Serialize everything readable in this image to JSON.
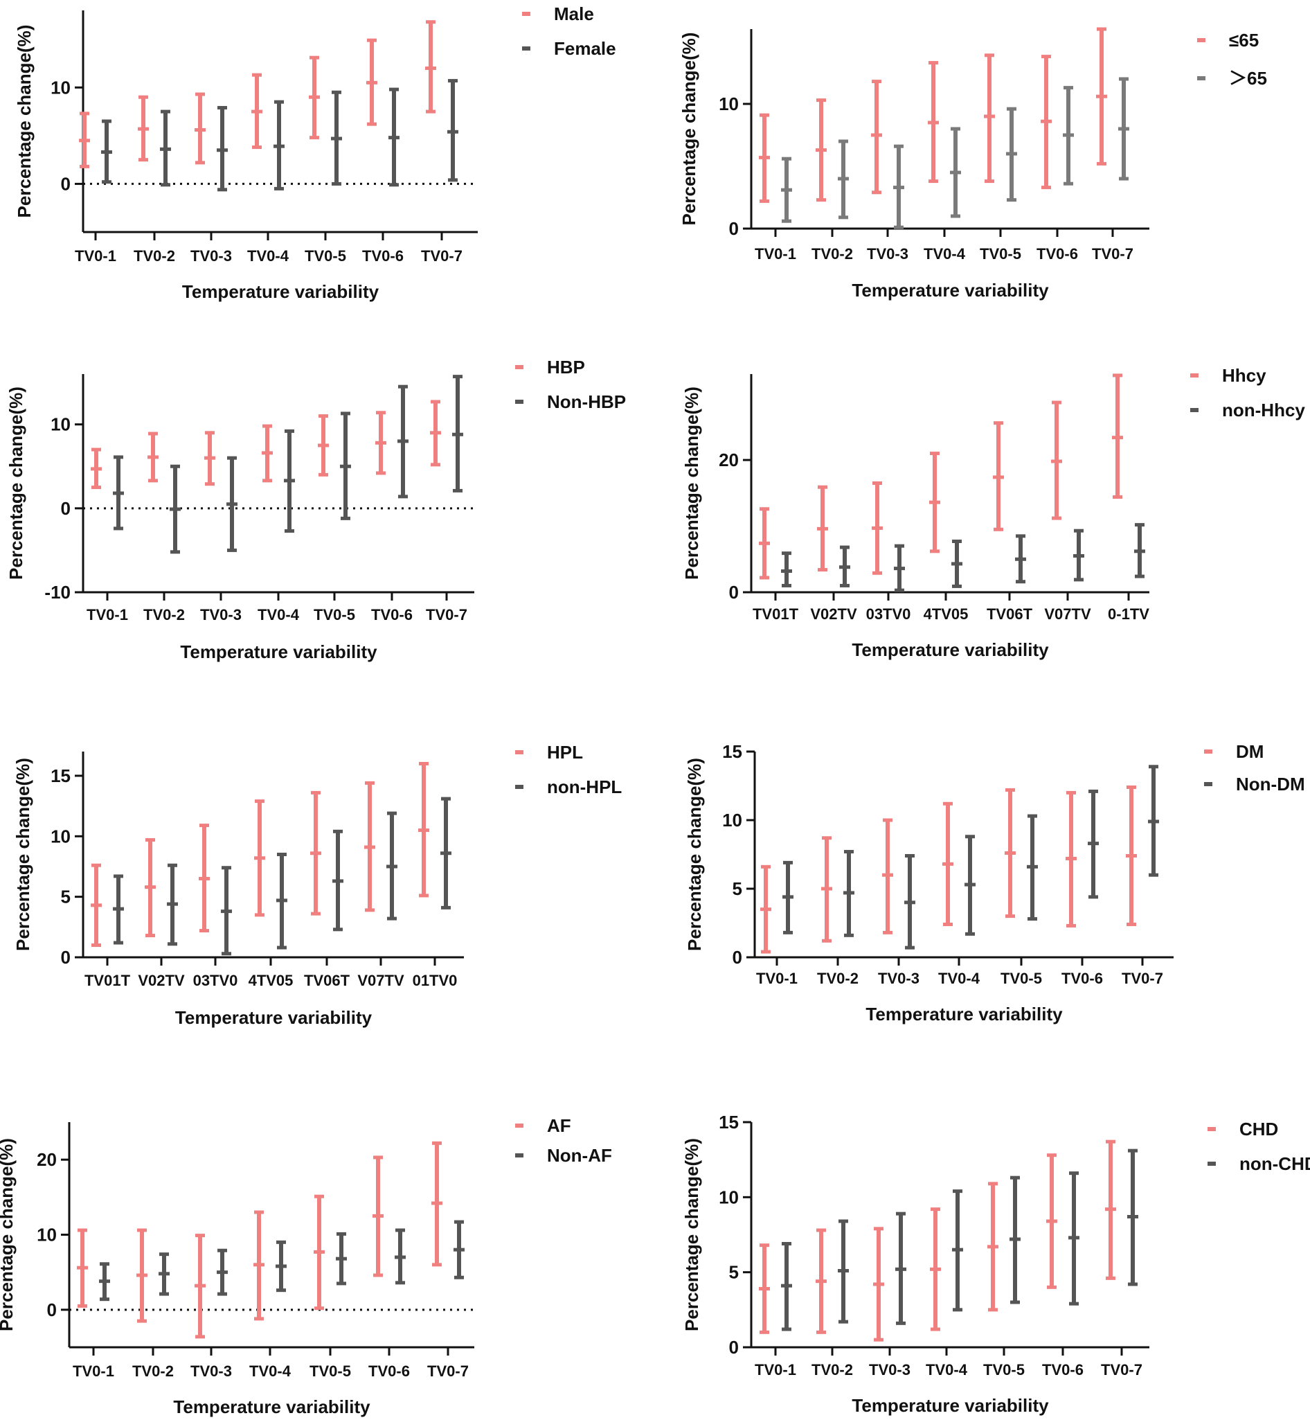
{
  "figure": {
    "background": "#ffffff",
    "series_colors": [
      "#f08080",
      "#555555"
    ]
  },
  "chart_data": [
    {
      "type": "errorbar",
      "panel": "male-female",
      "categories": [
        "TV0-1",
        "TV0-2",
        "TV0-3",
        "TV0-4",
        "TV0-5",
        "TV0-6",
        "TV0-7"
      ],
      "xlabel": "Temperature variability",
      "ylabel": "Percentage change(%)",
      "ylim": [
        -5,
        18
      ],
      "yticks": [
        0,
        10
      ],
      "zero_line": true,
      "series": [
        {
          "name": "Male",
          "color": "#f08080",
          "mid": [
            4.5,
            5.7,
            5.6,
            7.5,
            9.0,
            10.5,
            12.0
          ],
          "low": [
            1.8,
            2.5,
            2.2,
            3.8,
            4.8,
            6.2,
            7.5
          ],
          "high": [
            7.3,
            9.0,
            9.3,
            11.3,
            13.1,
            14.9,
            16.8
          ]
        },
        {
          "name": "Female",
          "color": "#555555",
          "mid": [
            3.3,
            3.6,
            3.5,
            3.9,
            4.7,
            4.8,
            5.4
          ],
          "low": [
            0.2,
            -0.1,
            -0.6,
            -0.5,
            0.0,
            -0.1,
            0.4
          ],
          "high": [
            6.5,
            7.5,
            7.9,
            8.5,
            9.5,
            9.8,
            10.7
          ]
        }
      ]
    },
    {
      "type": "errorbar",
      "panel": "age",
      "categories": [
        "TV0-1",
        "TV0-2",
        "TV0-3",
        "TV0-4",
        "TV0-5",
        "TV0-6",
        "TV0-7"
      ],
      "xlabel": "Temperature variability",
      "ylabel": "Percentage change(%)",
      "ylim": [
        0,
        16
      ],
      "yticks": [
        0,
        10
      ],
      "zero_line": false,
      "series": [
        {
          "name": "≤65",
          "color": "#f08080",
          "mid": [
            5.7,
            6.3,
            7.5,
            8.5,
            9.0,
            8.6,
            10.6
          ],
          "low": [
            2.2,
            2.3,
            2.9,
            3.8,
            3.8,
            3.3,
            5.2
          ],
          "high": [
            9.1,
            10.3,
            11.8,
            13.3,
            13.9,
            13.8,
            16.0
          ]
        },
        {
          "name": "＞65",
          "color": "#7a7a7a",
          "mid": [
            3.1,
            4.0,
            3.3,
            4.5,
            6.0,
            7.5,
            8.0
          ],
          "low": [
            0.6,
            0.9,
            0.1,
            1.0,
            2.3,
            3.6,
            4.0
          ],
          "high": [
            5.6,
            7.0,
            6.6,
            8.0,
            9.6,
            11.3,
            12.0
          ]
        }
      ]
    },
    {
      "type": "errorbar",
      "panel": "hbp",
      "categories": [
        "TV0-1",
        "TV0-2",
        "TV0-3",
        "TV0-4",
        "TV0-5",
        "TV0-6",
        "TV0-7"
      ],
      "xlabel": "Temperature variability",
      "ylabel": "Percentage change(%)",
      "ylim": [
        -10,
        16
      ],
      "yticks": [
        -10,
        0,
        10
      ],
      "zero_line": true,
      "series": [
        {
          "name": "HBP",
          "color": "#f08080",
          "mid": [
            4.7,
            6.1,
            6.0,
            6.6,
            7.5,
            7.8,
            9.0
          ],
          "low": [
            2.5,
            3.3,
            2.9,
            3.3,
            4.0,
            4.2,
            5.2
          ],
          "high": [
            7.0,
            8.9,
            9.0,
            9.8,
            11.0,
            11.4,
            12.7
          ]
        },
        {
          "name": "Non-HBP",
          "color": "#555555",
          "mid": [
            1.8,
            -0.1,
            0.5,
            3.3,
            5.0,
            8.0,
            8.8
          ],
          "low": [
            -2.4,
            -5.2,
            -5.0,
            -2.7,
            -1.2,
            1.4,
            2.1
          ],
          "high": [
            6.1,
            5.0,
            6.0,
            9.2,
            11.3,
            14.5,
            15.7
          ]
        }
      ]
    },
    {
      "type": "errorbar",
      "panel": "hhcy",
      "categories": [
        "TV01T",
        "V02TV",
        "03TV0",
        "4TV05",
        "TV06T",
        "V07TV",
        "0-1TV"
      ],
      "xlabel": "Temperature variability",
      "ylabel": "Percentage change(%)",
      "ylim": [
        0,
        33
      ],
      "yticks": [
        0,
        20
      ],
      "zero_line": false,
      "series": [
        {
          "name": "Hhcy",
          "color": "#f08080",
          "mid": [
            7.4,
            9.6,
            9.7,
            13.6,
            17.4,
            19.8,
            23.4
          ],
          "low": [
            2.2,
            3.4,
            2.9,
            6.2,
            9.5,
            11.2,
            14.4
          ],
          "high": [
            12.6,
            15.9,
            16.5,
            21.0,
            25.6,
            28.7,
            32.8
          ]
        },
        {
          "name": "non-Hhcy",
          "color": "#555555",
          "mid": [
            3.2,
            3.8,
            3.6,
            4.3,
            5.0,
            5.5,
            6.2
          ],
          "low": [
            1.0,
            1.0,
            0.3,
            0.9,
            1.6,
            1.9,
            2.4
          ],
          "high": [
            5.9,
            6.8,
            7.0,
            7.7,
            8.5,
            9.3,
            10.2
          ]
        }
      ]
    },
    {
      "type": "errorbar",
      "panel": "hpl",
      "categories": [
        "TV01T",
        "V02TV",
        "03TV0",
        "4TV05",
        "TV06T",
        "V07TV",
        "01TV0"
      ],
      "xlabel": "Temperature variability",
      "ylabel": "Percentage change(%)",
      "ylim": [
        0,
        17
      ],
      "yticks": [
        0,
        5,
        10,
        15
      ],
      "zero_line": false,
      "series": [
        {
          "name": "HPL",
          "color": "#f08080",
          "mid": [
            4.3,
            5.8,
            6.5,
            8.2,
            8.6,
            9.1,
            10.5
          ],
          "low": [
            1.0,
            1.8,
            2.2,
            3.5,
            3.6,
            3.9,
            5.1
          ],
          "high": [
            7.6,
            9.7,
            10.9,
            12.9,
            13.6,
            14.4,
            16.0
          ]
        },
        {
          "name": "non-HPL",
          "color": "#555555",
          "mid": [
            4.0,
            4.4,
            3.8,
            4.7,
            6.3,
            7.5,
            8.6
          ],
          "low": [
            1.2,
            1.1,
            0.3,
            0.8,
            2.3,
            3.2,
            4.1
          ],
          "high": [
            6.7,
            7.6,
            7.4,
            8.5,
            10.4,
            11.9,
            13.1
          ]
        }
      ]
    },
    {
      "type": "errorbar",
      "panel": "dm",
      "categories": [
        "TV0-1",
        "TV0-2",
        "TV0-3",
        "TV0-4",
        "TV0-5",
        "TV0-6",
        "TV0-7"
      ],
      "xlabel": "Temperature variability",
      "ylabel": "Percentage change(%)",
      "ylim": [
        0,
        15
      ],
      "yticks": [
        0,
        5,
        10,
        15
      ],
      "zero_line": false,
      "series": [
        {
          "name": "DM",
          "color": "#f08080",
          "mid": [
            3.5,
            5.0,
            6.0,
            6.8,
            7.6,
            7.2,
            7.4
          ],
          "low": [
            0.4,
            1.2,
            1.8,
            2.4,
            3.0,
            2.3,
            2.4
          ],
          "high": [
            6.6,
            8.7,
            10.0,
            11.2,
            12.2,
            12.0,
            12.4
          ]
        },
        {
          "name": "Non-DM",
          "color": "#555555",
          "mid": [
            4.4,
            4.7,
            4.0,
            5.3,
            6.6,
            8.3,
            9.9
          ],
          "low": [
            1.8,
            1.6,
            0.7,
            1.7,
            2.8,
            4.4,
            6.0
          ],
          "high": [
            6.9,
            7.7,
            7.4,
            8.8,
            10.3,
            12.1,
            13.9
          ]
        }
      ]
    },
    {
      "type": "errorbar",
      "panel": "af",
      "categories": [
        "TV0-1",
        "TV0-2",
        "TV0-3",
        "TV0-4",
        "TV0-5",
        "TV0-6",
        "TV0-7"
      ],
      "xlabel": "Temperature variability",
      "ylabel": "Percentage change(%)",
      "ylim": [
        -5,
        25
      ],
      "yticks": [
        0,
        10,
        20
      ],
      "zero_line": true,
      "series": [
        {
          "name": "AF",
          "color": "#f08080",
          "mid": [
            5.6,
            4.6,
            3.2,
            6.0,
            7.7,
            12.5,
            14.2
          ],
          "low": [
            0.5,
            -1.5,
            -3.6,
            -1.2,
            0.2,
            4.6,
            6.0
          ],
          "high": [
            10.6,
            10.6,
            9.9,
            13.0,
            15.1,
            20.3,
            22.2
          ]
        },
        {
          "name": "Non-AF",
          "color": "#555555",
          "mid": [
            3.8,
            4.8,
            5.0,
            5.8,
            6.8,
            7.0,
            8.0
          ],
          "low": [
            1.4,
            2.1,
            2.1,
            2.6,
            3.5,
            3.6,
            4.3
          ],
          "high": [
            6.1,
            7.4,
            7.9,
            9.0,
            10.1,
            10.6,
            11.7
          ]
        }
      ]
    },
    {
      "type": "errorbar",
      "panel": "chd",
      "categories": [
        "TV0-1",
        "TV0-2",
        "TV0-3",
        "TV0-4",
        "TV0-5",
        "TV0-6",
        "TV0-7"
      ],
      "xlabel": "Temperature variability",
      "ylabel": "Percentage change(%)",
      "ylim": [
        0,
        15
      ],
      "yticks": [
        0,
        5,
        10,
        15
      ],
      "zero_line": false,
      "series": [
        {
          "name": "CHD",
          "color": "#f08080",
          "mid": [
            3.9,
            4.4,
            4.2,
            5.2,
            6.7,
            8.4,
            9.2
          ],
          "low": [
            1.0,
            1.0,
            0.5,
            1.2,
            2.5,
            4.0,
            4.6
          ],
          "high": [
            6.8,
            7.8,
            7.9,
            9.2,
            10.9,
            12.8,
            13.7
          ]
        },
        {
          "name": "non-CHD",
          "color": "#555555",
          "mid": [
            4.1,
            5.1,
            5.2,
            6.5,
            7.2,
            7.3,
            8.7
          ],
          "low": [
            1.2,
            1.7,
            1.6,
            2.5,
            3.0,
            2.9,
            4.2
          ],
          "high": [
            6.9,
            8.4,
            8.9,
            10.4,
            11.3,
            11.6,
            13.1
          ]
        }
      ]
    }
  ]
}
